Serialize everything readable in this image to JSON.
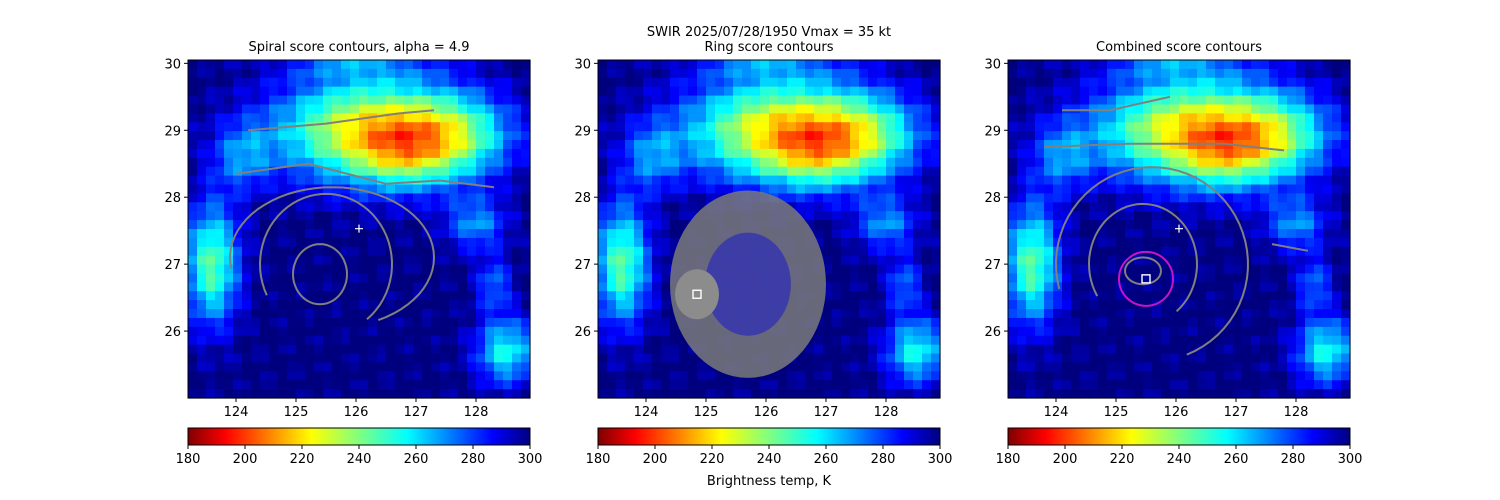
{
  "figure": {
    "suptitle_line1": "SWIR  2025/07/28/1950    Vmax = 35 kt",
    "colorbar_label": "Brightness temp, K"
  },
  "chart_data": [
    {
      "type": "heatmap",
      "title": "Spiral score contours, alpha =  4.9",
      "xlabel": "",
      "ylabel": "",
      "xlim": [
        123.2,
        128.9
      ],
      "ylim": [
        25.0,
        30.05
      ],
      "xticks": [
        124,
        125,
        126,
        127,
        128
      ],
      "yticks": [
        26,
        27,
        28,
        29,
        30
      ],
      "colorbar": {
        "colormap": "jet_r",
        "ticks": [
          180,
          200,
          220,
          240,
          260,
          280,
          300
        ],
        "range": [
          180,
          300
        ]
      },
      "marker_plus": {
        "x": 126.05,
        "y": 27.53
      },
      "contour_color": "#808080"
    },
    {
      "type": "heatmap",
      "title": "Ring score contours",
      "xlabel": "",
      "ylabel": "",
      "xlim": [
        123.2,
        128.9
      ],
      "ylim": [
        25.0,
        30.05
      ],
      "xticks": [
        124,
        125,
        126,
        127,
        128
      ],
      "yticks": [
        26,
        27,
        28,
        29,
        30
      ],
      "colorbar": {
        "colormap": "jet_r",
        "ticks": [
          180,
          200,
          220,
          240,
          260,
          280,
          300
        ],
        "range": [
          180,
          300
        ]
      },
      "marker_square": {
        "x": 124.85,
        "y": 26.55
      },
      "contour_color": "#808080"
    },
    {
      "type": "heatmap",
      "title": "Combined score contours",
      "xlabel": "",
      "ylabel": "",
      "xlim": [
        123.2,
        128.9
      ],
      "ylim": [
        25.0,
        30.05
      ],
      "xticks": [
        124,
        125,
        126,
        127,
        128
      ],
      "yticks": [
        26,
        27,
        28,
        29,
        30
      ],
      "colorbar": {
        "colormap": "jet_r",
        "ticks": [
          180,
          200,
          220,
          240,
          260,
          280,
          300
        ],
        "range": [
          180,
          300
        ]
      },
      "marker_plus": {
        "x": 126.05,
        "y": 27.53
      },
      "marker_square": {
        "x": 125.5,
        "y": 26.78
      },
      "circle_color": "#c814c8",
      "contour_color": "#808080"
    }
  ]
}
